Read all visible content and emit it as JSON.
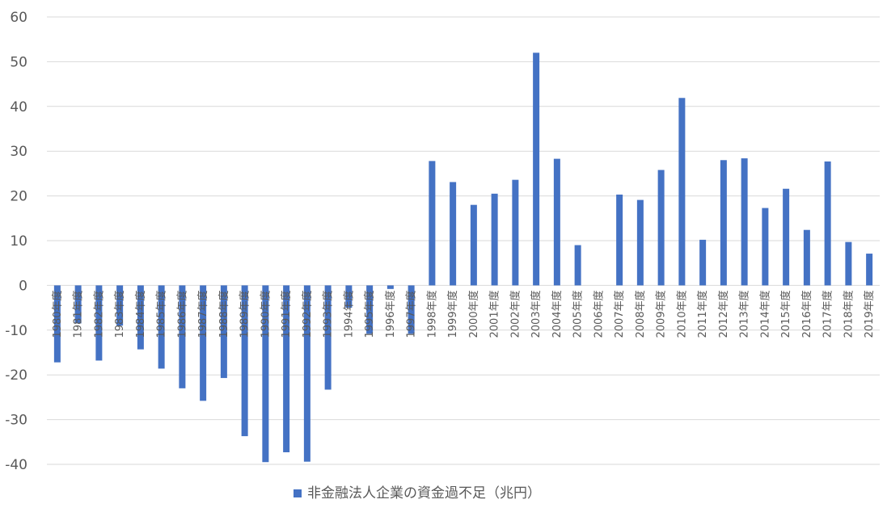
{
  "chart_data": {
    "type": "bar",
    "categories": [
      "1980年度",
      "1981年度",
      "1982年度",
      "1983年度",
      "1984年度",
      "1985年度",
      "1986年度",
      "1987年度",
      "1988年度",
      "1989年度",
      "1990年度",
      "1991年度",
      "1992年度",
      "1993年度",
      "1994年度",
      "1995年度",
      "1996年度",
      "1997年度",
      "1998年度",
      "1999年度",
      "2000年度",
      "2001年度",
      "2002年度",
      "2003年度",
      "2004年度",
      "2005年度",
      "2006年度",
      "2007年度",
      "2008年度",
      "2009年度",
      "2010年度",
      "2011年度",
      "2012年度",
      "2013年度",
      "2014年度",
      "2015年度",
      "2016年度",
      "2017年度",
      "2018年度",
      "2019年度"
    ],
    "series": [
      {
        "name": "非金融法人企業の資金過不足（兆円）",
        "color": "#4472C4",
        "values": [
          -17.2,
          -8.5,
          -16.8,
          -9.0,
          -14.3,
          -18.6,
          -23.0,
          -25.8,
          -20.7,
          -33.7,
          -39.5,
          -37.3,
          -39.4,
          -23.3,
          -5.0,
          -10.8,
          -0.8,
          -10.8,
          27.8,
          23.1,
          18.0,
          20.5,
          23.6,
          52.0,
          28.3,
          9.0,
          0.0,
          20.3,
          19.1,
          25.8,
          41.9,
          10.2,
          28.0,
          28.4,
          17.3,
          21.6,
          12.4,
          27.7,
          9.7,
          7.1
        ]
      }
    ],
    "ylim": [
      -40,
      60
    ],
    "yticks": [
      "-40",
      "-30",
      "-20",
      "-10",
      "0",
      "10",
      "20",
      "30",
      "40",
      "50",
      "60"
    ],
    "grid": true,
    "legend_position": "bottom",
    "gridline_color": "#D9D9D9"
  }
}
